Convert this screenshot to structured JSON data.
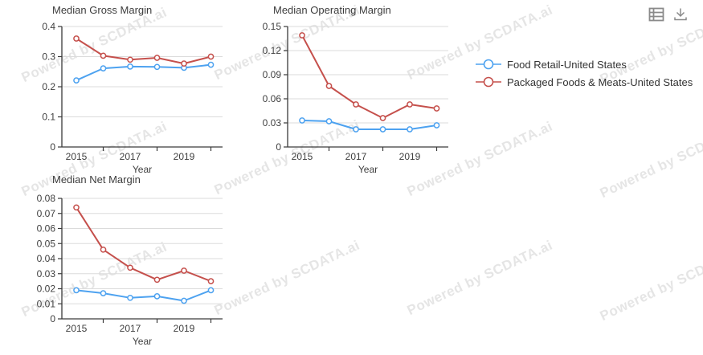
{
  "watermark": {
    "text": "Powered by SCDATA.ai"
  },
  "toolbar": {
    "items": [
      {
        "icon": "data-table-icon"
      },
      {
        "icon": "download-icon"
      }
    ]
  },
  "legend": {
    "items": [
      {
        "label": "Food Retail-United States",
        "color": "#4da2f0"
      },
      {
        "label": "Packaged Foods & Meats-United States",
        "color": "#c5504c"
      }
    ]
  },
  "colors": {
    "blue_series": "#4da2f0",
    "red_series": "#c5504c",
    "gridline": "#dbdbdb",
    "axis": "#3a3a3a",
    "icon": "#8a8a8a"
  },
  "chart_data": [
    {
      "type": "line",
      "title": "Median Gross Margin",
      "xlabel": "Year",
      "x": [
        2015,
        2016,
        2017,
        2018,
        2019,
        2020
      ],
      "x_tick_labels": [
        "2015",
        "2017",
        "2019"
      ],
      "ylim": [
        0,
        0.4
      ],
      "yticks": [
        0,
        0.1,
        0.2,
        0.3,
        0.4
      ],
      "grid": "horizontal",
      "legend_position": "right-of-second-chart",
      "series": [
        {
          "name": "Food Retail-United States",
          "color": "#4da2f0",
          "values": [
            0.221,
            0.261,
            0.267,
            0.266,
            0.263,
            0.273
          ]
        },
        {
          "name": "Packaged Foods & Meats-United States",
          "color": "#c5504c",
          "values": [
            0.36,
            0.303,
            0.29,
            0.296,
            0.277,
            0.3
          ]
        }
      ]
    },
    {
      "type": "line",
      "title": "Median Operating Margin",
      "xlabel": "Year",
      "x": [
        2015,
        2016,
        2017,
        2018,
        2019,
        2020
      ],
      "x_tick_labels": [
        "2015",
        "2017",
        "2019"
      ],
      "ylim": [
        0,
        0.15
      ],
      "yticks": [
        0,
        0.03,
        0.06,
        0.09,
        0.12,
        0.15
      ],
      "grid": "horizontal",
      "series": [
        {
          "name": "Food Retail-United States",
          "color": "#4da2f0",
          "values": [
            0.033,
            0.032,
            0.022,
            0.022,
            0.022,
            0.027
          ]
        },
        {
          "name": "Packaged Foods & Meats-United States",
          "color": "#c5504c",
          "values": [
            0.139,
            0.076,
            0.053,
            0.036,
            0.053,
            0.048
          ]
        }
      ]
    },
    {
      "type": "line",
      "title": "Median Net Margin",
      "xlabel": "Year",
      "x": [
        2015,
        2016,
        2017,
        2018,
        2019,
        2020
      ],
      "x_tick_labels": [
        "2015",
        "2017",
        "2019"
      ],
      "ylim": [
        0,
        0.08
      ],
      "yticks": [
        0,
        0.01,
        0.02,
        0.03,
        0.04,
        0.05,
        0.06,
        0.07,
        0.08
      ],
      "grid": "horizontal",
      "series": [
        {
          "name": "Food Retail-United States",
          "color": "#4da2f0",
          "values": [
            0.019,
            0.017,
            0.014,
            0.015,
            0.012,
            0.019
          ]
        },
        {
          "name": "Packaged Foods & Meats-United States",
          "color": "#c5504c",
          "values": [
            0.074,
            0.046,
            0.034,
            0.026,
            0.032,
            0.025
          ]
        }
      ]
    }
  ]
}
